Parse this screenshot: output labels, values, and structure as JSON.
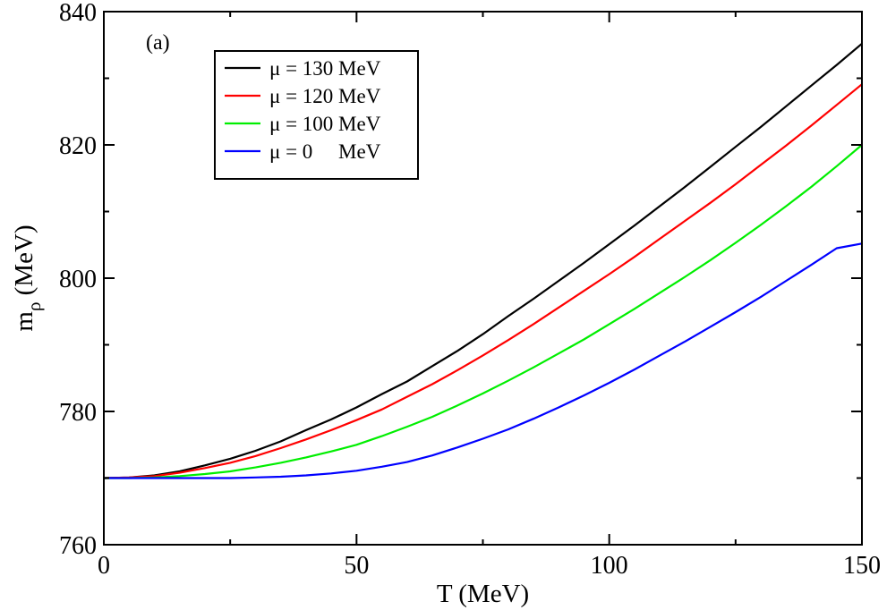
{
  "chart_data": {
    "type": "line",
    "panel_label": "(a)",
    "xlabel": "T (MeV)",
    "ylabel_main": "m",
    "ylabel_sub": "ρ",
    "ylabel_units": " (MeV)",
    "xlim": [
      0,
      150
    ],
    "ylim": [
      760,
      840
    ],
    "x_major_ticks": [
      0,
      50,
      100,
      150
    ],
    "x_minor_ticks": [
      25,
      75,
      125
    ],
    "y_major_ticks": [
      760,
      780,
      800,
      820,
      840
    ],
    "y_minor_ticks": [
      770,
      790,
      810,
      830
    ],
    "x_tick_labels": [
      "0",
      "50",
      "100",
      "150"
    ],
    "y_tick_labels": [
      "760",
      "780",
      "800",
      "820",
      "840"
    ],
    "grid": false,
    "legend_position": "top-left",
    "series": [
      {
        "name": "μ = 130 MeV",
        "legend_label": "μ = 130 MeV",
        "color": "#000000",
        "x": [
          0,
          5,
          10,
          15,
          20,
          25,
          30,
          35,
          40,
          45,
          50,
          55,
          60,
          65,
          70,
          75,
          80,
          85,
          90,
          95,
          100,
          105,
          110,
          115,
          120,
          125,
          130,
          135,
          140,
          145,
          150
        ],
        "y": [
          770.0,
          770.1,
          770.4,
          771.0,
          771.9,
          772.9,
          774.1,
          775.5,
          777.2,
          778.8,
          780.6,
          782.6,
          784.5,
          786.8,
          789.1,
          791.6,
          794.3,
          796.9,
          799.6,
          802.3,
          805.1,
          807.9,
          810.8,
          813.7,
          816.7,
          819.7,
          822.7,
          825.8,
          828.9,
          832.0,
          835.2
        ]
      },
      {
        "name": "μ = 120 MeV",
        "legend_label": "μ = 120 MeV",
        "color": "#ff0000",
        "x": [
          0,
          5,
          10,
          15,
          20,
          25,
          30,
          35,
          40,
          45,
          50,
          55,
          60,
          65,
          70,
          75,
          80,
          85,
          90,
          95,
          100,
          105,
          110,
          115,
          120,
          125,
          130,
          135,
          140,
          145,
          150
        ],
        "y": [
          770.0,
          770.1,
          770.3,
          770.8,
          771.5,
          772.3,
          773.3,
          774.5,
          775.8,
          777.2,
          778.7,
          780.3,
          782.2,
          784.1,
          786.2,
          788.4,
          790.7,
          793.1,
          795.6,
          798.1,
          800.6,
          803.2,
          805.9,
          808.6,
          811.3,
          814.1,
          817.0,
          819.9,
          822.9,
          826.0,
          829.1
        ]
      },
      {
        "name": "μ = 100 MeV",
        "legend_label": "μ = 100 MeV",
        "color": "#00ee00",
        "x": [
          0,
          5,
          10,
          15,
          20,
          25,
          30,
          35,
          40,
          45,
          50,
          55,
          60,
          65,
          70,
          75,
          80,
          85,
          90,
          95,
          100,
          105,
          110,
          115,
          120,
          125,
          130,
          135,
          140,
          145,
          150
        ],
        "y": [
          770.0,
          770.0,
          770.1,
          770.3,
          770.6,
          771.0,
          771.6,
          772.3,
          773.1,
          774.0,
          775.0,
          776.3,
          777.7,
          779.2,
          780.9,
          782.7,
          784.6,
          786.6,
          788.7,
          790.8,
          793.1,
          795.4,
          797.8,
          800.2,
          802.7,
          805.3,
          808.0,
          810.8,
          813.7,
          816.8,
          820.0
        ]
      },
      {
        "name": "μ = 0 MeV",
        "legend_label": "μ = 0     MeV",
        "color": "#0000ff",
        "x": [
          0,
          5,
          10,
          15,
          20,
          25,
          30,
          35,
          40,
          45,
          50,
          55,
          60,
          65,
          70,
          75,
          80,
          85,
          90,
          95,
          100,
          105,
          110,
          115,
          120,
          125,
          130,
          135,
          140,
          145,
          150
        ],
        "y": [
          770.0,
          770.0,
          770.0,
          770.0,
          770.0,
          770.0,
          770.1,
          770.2,
          770.4,
          770.7,
          771.1,
          771.7,
          772.4,
          773.4,
          774.6,
          775.9,
          777.3,
          778.9,
          780.6,
          782.4,
          784.3,
          786.3,
          788.4,
          790.5,
          792.7,
          794.9,
          797.2,
          799.6,
          802.0,
          804.5,
          805.2
        ]
      }
    ]
  }
}
